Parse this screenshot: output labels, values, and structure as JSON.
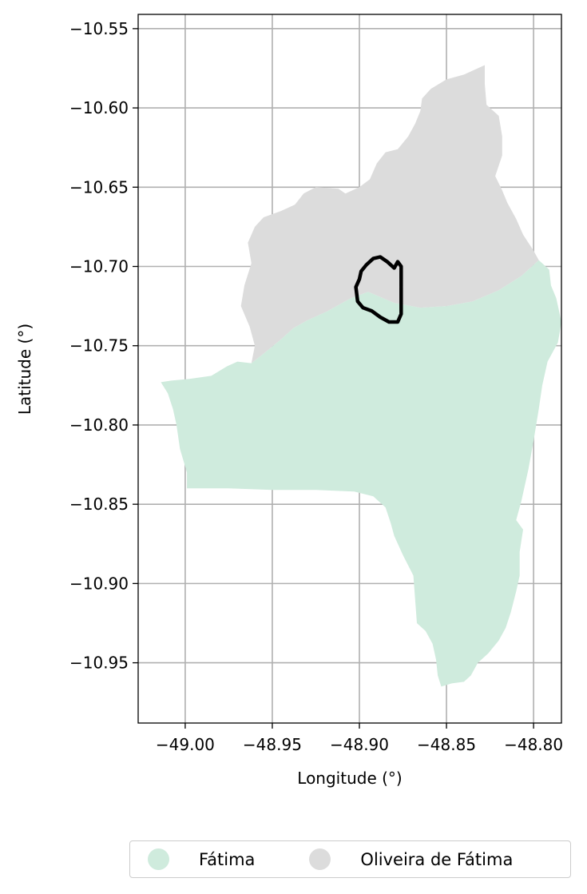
{
  "chart_data": {
    "type": "map",
    "title": "",
    "xlabel": "Longitude (°)",
    "ylabel": "Latitude (°)",
    "xlim": [
      -49.027,
      -48.784
    ],
    "ylim": [
      -10.988,
      -10.541
    ],
    "xticks": [
      -49.0,
      -48.95,
      -48.9,
      -48.85,
      -48.8
    ],
    "xtick_labels": [
      "−49.00",
      "−48.95",
      "−48.90",
      "−48.85",
      "−48.80"
    ],
    "yticks": [
      -10.55,
      -10.6,
      -10.65,
      -10.7,
      -10.75,
      -10.8,
      -10.85,
      -10.9,
      -10.95
    ],
    "ytick_labels": [
      "−10.55",
      "−10.60",
      "−10.65",
      "−10.70",
      "−10.75",
      "−10.80",
      "−10.85",
      "−10.90",
      "−10.95"
    ],
    "grid": true,
    "legend_position": "bottom-center",
    "regions": [
      {
        "name": "Fátima",
        "color": "#cfebdd",
        "boundary": [
          [
            -49.014,
            -10.773
          ],
          [
            -49.008,
            -10.772
          ],
          [
            -48.998,
            -10.771
          ],
          [
            -48.985,
            -10.769
          ],
          [
            -48.976,
            -10.763
          ],
          [
            -48.97,
            -10.76
          ],
          [
            -48.962,
            -10.761
          ],
          [
            -48.955,
            -10.755
          ],
          [
            -48.945,
            -10.746
          ],
          [
            -48.938,
            -10.739
          ],
          [
            -48.93,
            -10.734
          ],
          [
            -48.918,
            -10.728
          ],
          [
            -48.905,
            -10.72
          ],
          [
            -48.895,
            -10.716
          ],
          [
            -48.88,
            -10.723
          ],
          [
            -48.865,
            -10.726
          ],
          [
            -48.85,
            -10.725
          ],
          [
            -48.835,
            -10.722
          ],
          [
            -48.82,
            -10.715
          ],
          [
            -48.807,
            -10.706
          ],
          [
            -48.797,
            -10.696
          ],
          [
            -48.791,
            -10.702
          ],
          [
            -48.79,
            -10.712
          ],
          [
            -48.787,
            -10.72
          ],
          [
            -48.784,
            -10.735
          ],
          [
            -48.786,
            -10.748
          ],
          [
            -48.792,
            -10.76
          ],
          [
            -48.795,
            -10.775
          ],
          [
            -48.797,
            -10.79
          ],
          [
            -48.8,
            -10.81
          ],
          [
            -48.803,
            -10.828
          ],
          [
            -48.807,
            -10.848
          ],
          [
            -48.81,
            -10.86
          ],
          [
            -48.806,
            -10.866
          ],
          [
            -48.808,
            -10.88
          ],
          [
            -48.808,
            -10.895
          ],
          [
            -48.81,
            -10.905
          ],
          [
            -48.813,
            -10.918
          ],
          [
            -48.816,
            -10.928
          ],
          [
            -48.82,
            -10.936
          ],
          [
            -48.826,
            -10.944
          ],
          [
            -48.832,
            -10.95
          ],
          [
            -48.836,
            -10.958
          ],
          [
            -48.84,
            -10.962
          ],
          [
            -48.847,
            -10.963
          ],
          [
            -48.853,
            -10.965
          ],
          [
            -48.855,
            -10.958
          ],
          [
            -48.856,
            -10.948
          ],
          [
            -48.858,
            -10.938
          ],
          [
            -48.862,
            -10.93
          ],
          [
            -48.867,
            -10.925
          ],
          [
            -48.868,
            -10.91
          ],
          [
            -48.869,
            -10.895
          ],
          [
            -48.875,
            -10.882
          ],
          [
            -48.88,
            -10.87
          ],
          [
            -48.882,
            -10.862
          ],
          [
            -48.885,
            -10.852
          ],
          [
            -48.892,
            -10.845
          ],
          [
            -48.903,
            -10.842
          ],
          [
            -48.925,
            -10.841
          ],
          [
            -48.95,
            -10.841
          ],
          [
            -48.975,
            -10.84
          ],
          [
            -48.999,
            -10.84
          ],
          [
            -48.999,
            -10.83
          ],
          [
            -49.003,
            -10.815
          ],
          [
            -49.005,
            -10.8
          ],
          [
            -49.007,
            -10.79
          ],
          [
            -49.01,
            -10.78
          ]
        ]
      },
      {
        "name": "Oliveira de Fátima",
        "color": "#dcdcdc",
        "boundary": [
          [
            -48.962,
            -10.761
          ],
          [
            -48.96,
            -10.75
          ],
          [
            -48.963,
            -10.738
          ],
          [
            -48.968,
            -10.725
          ],
          [
            -48.966,
            -10.712
          ],
          [
            -48.962,
            -10.698
          ],
          [
            -48.964,
            -10.685
          ],
          [
            -48.96,
            -10.675
          ],
          [
            -48.955,
            -10.669
          ],
          [
            -48.945,
            -10.665
          ],
          [
            -48.937,
            -10.661
          ],
          [
            -48.932,
            -10.654
          ],
          [
            -48.925,
            -10.65
          ],
          [
            -48.912,
            -10.651
          ],
          [
            -48.908,
            -10.654
          ],
          [
            -48.9,
            -10.65
          ],
          [
            -48.894,
            -10.645
          ],
          [
            -48.89,
            -10.635
          ],
          [
            -48.885,
            -10.628
          ],
          [
            -48.878,
            -10.626
          ],
          [
            -48.872,
            -10.618
          ],
          [
            -48.868,
            -10.61
          ],
          [
            -48.865,
            -10.602
          ],
          [
            -48.864,
            -10.594
          ],
          [
            -48.859,
            -10.588
          ],
          [
            -48.85,
            -10.582
          ],
          [
            -48.84,
            -10.579
          ],
          [
            -48.828,
            -10.573
          ],
          [
            -48.828,
            -10.585
          ],
          [
            -48.827,
            -10.598
          ],
          [
            -48.82,
            -10.605
          ],
          [
            -48.818,
            -10.618
          ],
          [
            -48.818,
            -10.63
          ],
          [
            -48.822,
            -10.643
          ],
          [
            -48.818,
            -10.652
          ],
          [
            -48.815,
            -10.66
          ],
          [
            -48.81,
            -10.67
          ],
          [
            -48.806,
            -10.68
          ],
          [
            -48.8,
            -10.69
          ],
          [
            -48.797,
            -10.696
          ],
          [
            -48.807,
            -10.706
          ],
          [
            -48.82,
            -10.715
          ],
          [
            -48.835,
            -10.722
          ],
          [
            -48.85,
            -10.725
          ],
          [
            -48.865,
            -10.726
          ],
          [
            -48.88,
            -10.723
          ],
          [
            -48.895,
            -10.716
          ],
          [
            -48.905,
            -10.72
          ],
          [
            -48.918,
            -10.728
          ],
          [
            -48.93,
            -10.734
          ],
          [
            -48.938,
            -10.739
          ],
          [
            -48.945,
            -10.746
          ],
          [
            -48.955,
            -10.755
          ]
        ]
      }
    ],
    "outline": {
      "color": "#000000",
      "boundary": [
        [
          -48.899,
          -10.703
        ],
        [
          -48.896,
          -10.699
        ],
        [
          -48.892,
          -10.695
        ],
        [
          -48.888,
          -10.694
        ],
        [
          -48.884,
          -10.697
        ],
        [
          -48.88,
          -10.701
        ],
        [
          -48.878,
          -10.697
        ],
        [
          -48.876,
          -10.7
        ],
        [
          -48.876,
          -10.715
        ],
        [
          -48.876,
          -10.73
        ],
        [
          -48.878,
          -10.735
        ],
        [
          -48.883,
          -10.735
        ],
        [
          -48.888,
          -10.732
        ],
        [
          -48.893,
          -10.728
        ],
        [
          -48.898,
          -10.726
        ],
        [
          -48.901,
          -10.722
        ],
        [
          -48.902,
          -10.713
        ],
        [
          -48.9,
          -10.708
        ]
      ]
    }
  }
}
